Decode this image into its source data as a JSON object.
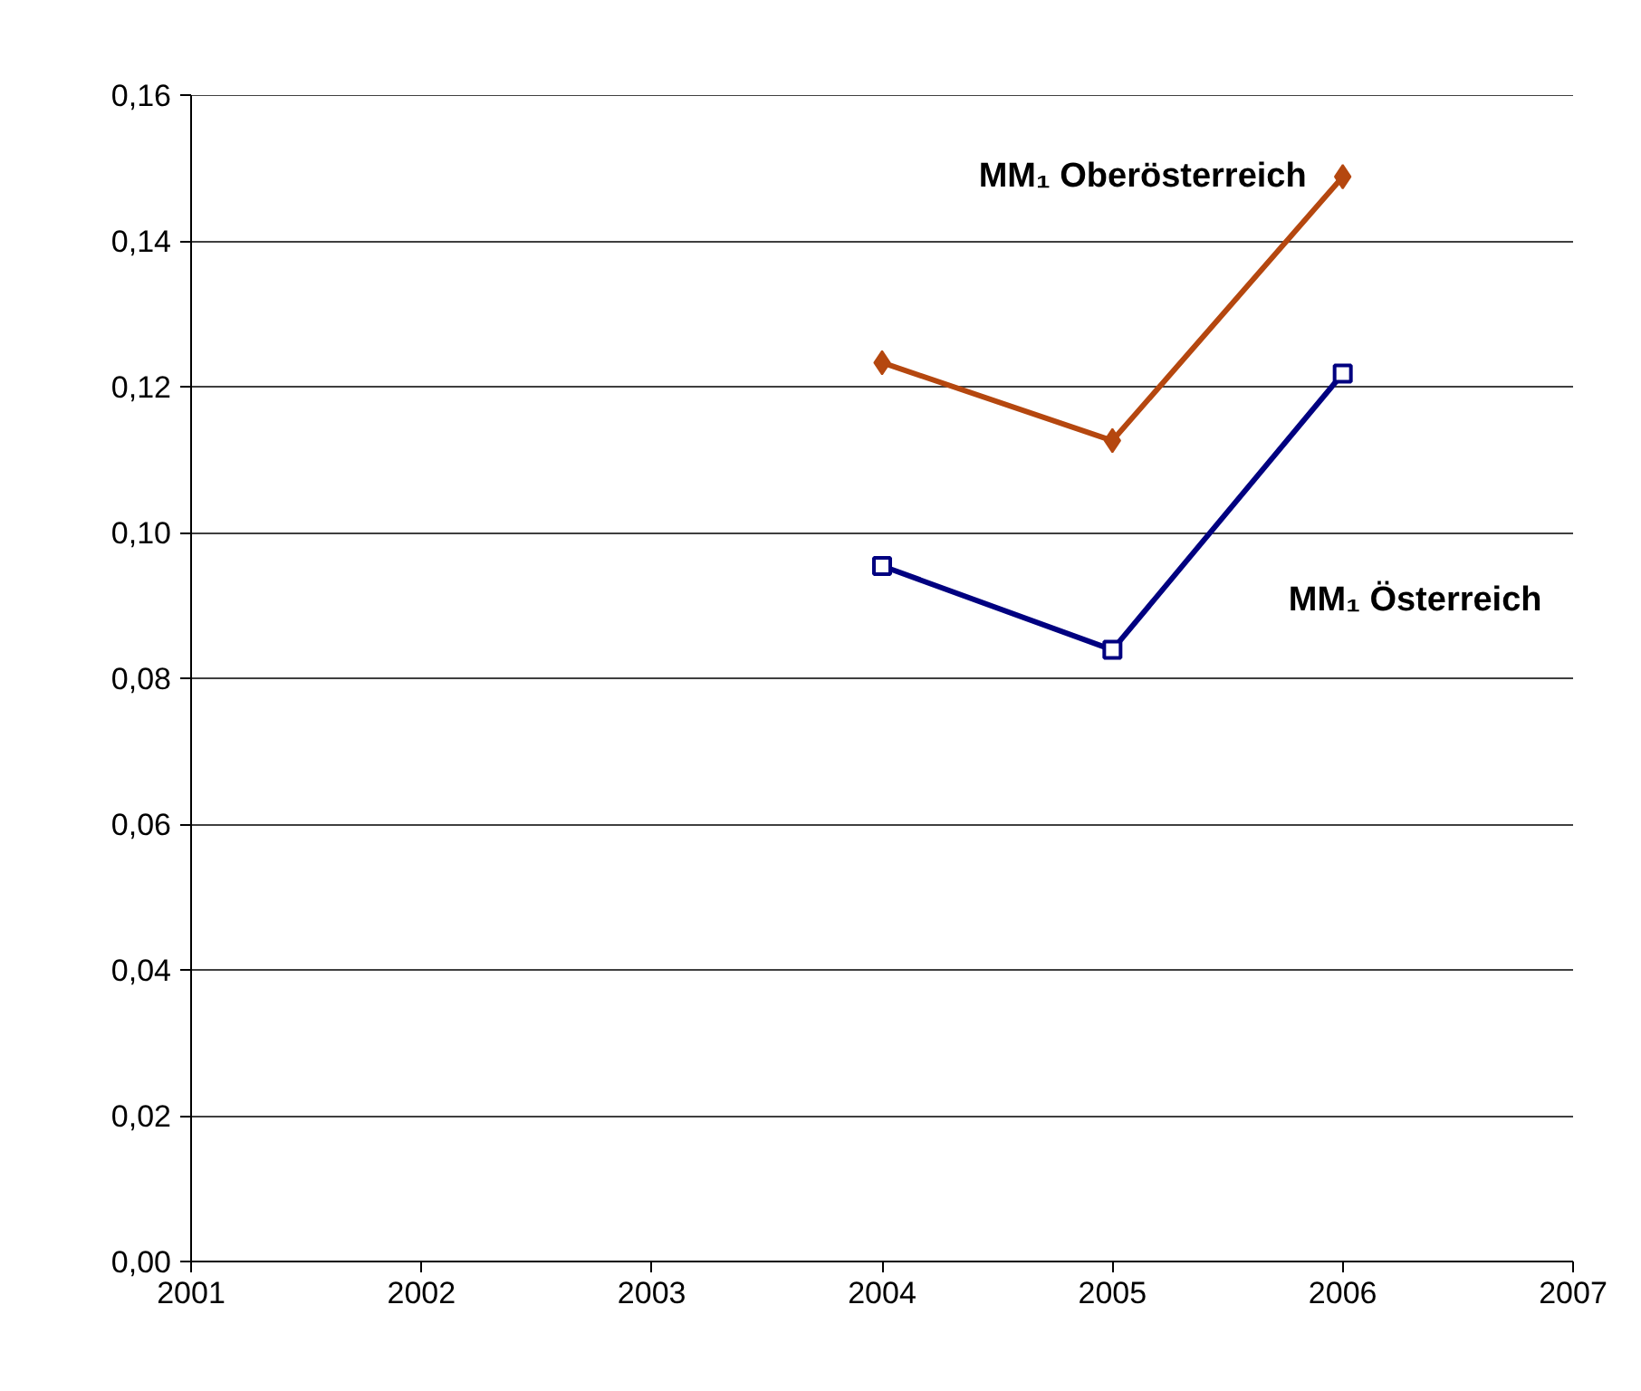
{
  "chart_data": {
    "type": "line",
    "x": [
      2004,
      2005,
      2006
    ],
    "series": [
      {
        "name": "MM₁ Oberösterreich",
        "color": "#b5470f",
        "values": [
          0.1233,
          0.1126,
          0.1488
        ],
        "marker": "diamond"
      },
      {
        "name": "MM₁ Österreich",
        "color": "#000080",
        "values": [
          0.0954,
          0.0839,
          0.1218
        ],
        "marker": "square"
      }
    ],
    "xlim": [
      2001,
      2007
    ],
    "xticks": [
      2001,
      2002,
      2003,
      2004,
      2005,
      2006,
      2007
    ],
    "ylim": [
      0,
      0.16
    ],
    "yticks": [
      {
        "value": 0,
        "label": "0,00"
      },
      {
        "value": 0.02,
        "label": "0,02"
      },
      {
        "value": 0.04,
        "label": "0,04"
      },
      {
        "value": 0.06,
        "label": "0,06"
      },
      {
        "value": 0.08,
        "label": "0,08"
      },
      {
        "value": 0.1,
        "label": "0,10"
      },
      {
        "value": 0.12,
        "label": "0,12"
      },
      {
        "value": 0.14,
        "label": "0,14"
      },
      {
        "value": 0.16,
        "label": "0,16"
      }
    ],
    "grid": "y",
    "line_style": "solid"
  }
}
